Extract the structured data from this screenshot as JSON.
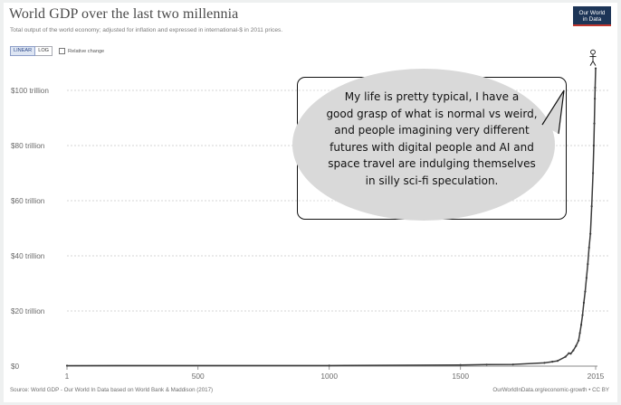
{
  "header": {
    "title": "World GDP over the last two millennia",
    "subtitle": "Total output of the world economy; adjusted for inflation and expressed in international-$ in 2011 prices."
  },
  "controls": {
    "linear_label": "LINEAR",
    "log_label": "LOG",
    "relative_change_label": "Relative change",
    "active_scale": "linear",
    "relative_change_checked": false
  },
  "logo": {
    "line1": "Our World",
    "line2": "in Data",
    "background_color": "#1d3557",
    "accent_color": "#c1352d"
  },
  "footer": {
    "source": "Source: World GDP - Our World In Data based on World Bank & Maddison (2017)",
    "license": "OurWorldInData.org/economic-growth • CC BY"
  },
  "annotation": {
    "text": "My life is pretty typical, I have a good grasp of what is normal vs weird, and people imagining very different futures with digital people and AI and space travel are indulging themselves in silly sci-fi speculation.",
    "lines": [
      "My life is pretty typical, I have a",
      "good grasp of what is normal vs weird,",
      "and people imagining very different",
      "futures with digital people and AI and",
      "space travel are indulging themselves",
      "in silly sci-fi speculation."
    ],
    "figure_icon": "stick-figure-icon",
    "bubble_color": "#d9d9d9"
  },
  "chart_data": {
    "type": "line",
    "title": "World GDP over the last two millennia",
    "subtitle": "Total output of the world economy; adjusted for inflation and expressed in international-$ in 2011 prices.",
    "xlabel": "",
    "ylabel": "",
    "xlim": [
      1,
      2015
    ],
    "ylim": [
      0,
      100
    ],
    "y_unit": "trillion international-$",
    "x_ticks": [
      "1",
      "500",
      "1000",
      "1500",
      "2015"
    ],
    "x_tick_values": [
      1,
      500,
      1000,
      1500,
      2015
    ],
    "y_ticks": [
      "$0",
      "$20 trillion",
      "$40 trillion",
      "$60 trillion",
      "$80 trillion",
      "$100 trillion"
    ],
    "y_tick_values": [
      0,
      20,
      40,
      60,
      80,
      100
    ],
    "grid": "horizontal dotted",
    "legend": "none",
    "series": [
      {
        "color": "#3a3a3a",
        "x": [
          1,
          1000,
          1500,
          1600,
          1700,
          1820,
          1850,
          1870,
          1900,
          1913,
          1920,
          1930,
          1940,
          1950,
          1955,
          1960,
          1965,
          1970,
          1975,
          1980,
          1985,
          1990,
          1995,
          2000,
          2005,
          2008,
          2010,
          2012,
          2013,
          2015
        ],
        "values": [
          0.18,
          0.21,
          0.43,
          0.56,
          0.6,
          1.2,
          1.6,
          1.9,
          3.4,
          4.7,
          4.5,
          5.7,
          7.3,
          9.3,
          12.0,
          15.0,
          18.5,
          23.0,
          27.0,
          32.0,
          37.0,
          43.0,
          48.0,
          58.0,
          70.0,
          80.0,
          88.0,
          97.0,
          101.0,
          108.0
        ]
      }
    ]
  }
}
